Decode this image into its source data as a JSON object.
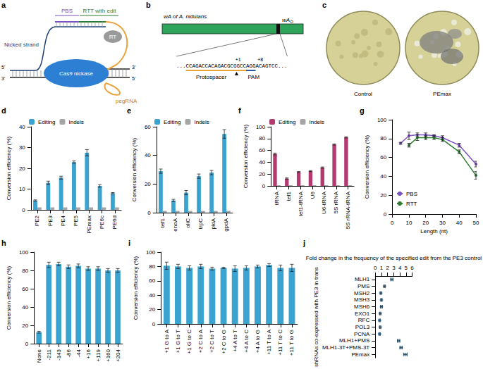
{
  "diagrams": {
    "a": {
      "panel": "a",
      "pbs": "PBS",
      "rtt": "RTT with edit",
      "nicked_strand": "Nicked strand",
      "rt": "RT",
      "end5": "5'",
      "end3": "3'",
      "cas9": "Cas9 nickase",
      "pegrna": "pegRNA"
    },
    "b": {
      "panel": "b",
      "gene": "wA of A. nidulans",
      "site": "wA",
      "site_sub": "O",
      "sequence": "...CCAGACCACAGACGCGGCCAGGACAGTCC...",
      "mark1": "+1",
      "mark8": "+8",
      "protospacer": "Protospacer",
      "pam": "PAM"
    },
    "c": {
      "panel": "c",
      "plates": [
        "Control",
        "PEmax"
      ]
    }
  },
  "chart_data": [
    {
      "panel": "d",
      "type": "bar",
      "categories": [
        "PE2",
        "PE3",
        "PE4",
        "PE5",
        "PEmax",
        "PE6c",
        "PE6d"
      ],
      "series": [
        {
          "name": "Editing",
          "color": "#3ba3d0",
          "values": [
            4.5,
            13,
            15.5,
            23,
            27.5,
            11.5,
            8
          ],
          "errors": [
            0.3,
            0.8,
            0.7,
            0.6,
            1.5,
            0.6,
            0.3
          ]
        },
        {
          "name": "Indels",
          "color": "#a6a6a6",
          "values": [
            1.2,
            1.2,
            1.2,
            1.2,
            1.2,
            1.2,
            1.2
          ]
        }
      ],
      "ylim": [
        0,
        40
      ],
      "yticks": [
        0,
        10,
        20,
        30,
        40
      ],
      "ylabel": "Conversion efficiency (%)",
      "legend": "top",
      "grid": false
    },
    {
      "panel": "e",
      "type": "bar",
      "categories": [
        "tef1",
        "enoA",
        "oliC",
        "trpC",
        "pkiA",
        "gpdA"
      ],
      "series": [
        {
          "name": "Editing",
          "color": "#3ba3d0",
          "values": [
            29,
            8.5,
            14,
            25.5,
            28,
            55
          ],
          "errors": [
            1.5,
            0.8,
            1.5,
            1.5,
            1.5,
            3
          ]
        },
        {
          "name": "Indels",
          "color": "#a6a6a6",
          "values": [
            1.2,
            1.2,
            1.2,
            1.2,
            1.2,
            1.2
          ]
        }
      ],
      "ylim": [
        0,
        60
      ],
      "yticks": [
        0,
        20,
        40,
        60
      ],
      "ylabel": "Conversion efficiency (%)",
      "legend": "top",
      "grid": false
    },
    {
      "panel": "f",
      "type": "bar",
      "categories": [
        "tRNA",
        "tef1",
        "tef1-tRNA",
        "U6",
        "U6-tRNA",
        "5S rRNA",
        "5S rRNA-tRNA"
      ],
      "series": [
        {
          "name": "Editing",
          "color": "#b23a6f",
          "values": [
            54,
            12.5,
            23.5,
            25,
            31,
            70,
            82
          ],
          "errors": [
            1.5,
            1,
            0.8,
            0.8,
            1,
            1,
            1
          ]
        },
        {
          "name": "Indels",
          "color": "#a6a6a6",
          "values": [
            1.2,
            1.2,
            1.2,
            1.2,
            1.2,
            1.2,
            1.2
          ]
        }
      ],
      "ylim": [
        0,
        100
      ],
      "yticks": [
        0,
        20,
        40,
        60,
        80,
        100
      ],
      "ylabel": "Conversion efficiency (%)",
      "legend": "top",
      "grid": false
    },
    {
      "panel": "g",
      "type": "line",
      "x": [
        5,
        10,
        15,
        20,
        25,
        30,
        40,
        50
      ],
      "marker": "circle",
      "series": [
        {
          "name": "PBS",
          "color": "#7b52c1",
          "values": [
            75,
            83,
            84,
            84,
            83,
            81,
            73,
            53
          ],
          "errors": [
            1,
            4,
            2,
            2,
            1,
            2,
            2,
            3
          ]
        },
        {
          "name": "RTT",
          "color": "#2f7d32",
          "values": [
            null,
            73,
            81,
            81,
            81,
            79,
            66,
            41
          ],
          "errors": [
            null,
            2,
            3,
            2,
            2,
            2,
            2,
            4
          ]
        }
      ],
      "xlim": [
        0,
        50
      ],
      "xticks": [
        0,
        10,
        20,
        30,
        40,
        50
      ],
      "xlabel": "Length (nt)",
      "ylim": [
        0,
        100
      ],
      "yticks": [
        0,
        20,
        40,
        60,
        80,
        100
      ],
      "ylabel": "Conversion efficiency (%)",
      "legend": "bottom-left",
      "grid": false
    },
    {
      "panel": "h",
      "type": "bar",
      "categories": [
        "None",
        "-211",
        "-143",
        "-86",
        "-44",
        "+16",
        "+119",
        "+160",
        "+204"
      ],
      "series": [
        {
          "name": "Editing",
          "color": "#3ba3d0",
          "values": [
            12.5,
            86,
            87,
            84,
            85,
            82,
            82,
            80,
            80
          ],
          "errors": [
            1,
            3,
            2,
            2,
            2,
            2,
            2,
            2,
            2
          ]
        }
      ],
      "ylim": [
        0,
        100
      ],
      "yticks": [
        0,
        20,
        40,
        60,
        80,
        100
      ],
      "ylabel": "Conversion efficiency (%)",
      "grid": false
    },
    {
      "panel": "i",
      "type": "bar",
      "categories": [
        "+1 G to A",
        "+1 G to T",
        "+1 G to C",
        "+2 C to A",
        "+2 C to T",
        "+2 C to G",
        "+4 A to T",
        "+4 A to C",
        "+4 A to G",
        "+11 T to A",
        "+11 T to C",
        "+11 T to G"
      ],
      "series": [
        {
          "name": "Editing",
          "color": "#3ba3d0",
          "values": [
            81,
            80,
            78,
            80,
            77,
            78,
            77,
            78,
            80,
            82,
            78,
            78
          ],
          "errors": [
            5,
            3,
            3,
            3,
            2,
            1,
            4,
            3,
            2,
            2,
            4,
            5
          ]
        }
      ],
      "ylim": [
        0,
        100
      ],
      "yticks": [
        0,
        20,
        40,
        60,
        80,
        100
      ],
      "ylabel": "Conversion efficiency (%)",
      "grid": false
    },
    {
      "panel": "j",
      "type": "scatter",
      "orientation": "horizontal",
      "marker": "circle",
      "categories": [
        "MLH1",
        "PMS",
        "MSH2",
        "MSH3",
        "MSH6",
        "EXO1",
        "RFC",
        "POL3",
        "PCNA",
        "MLH1+PMS",
        "MLH1-3T+PMS-3T",
        "PEmax"
      ],
      "series": [
        {
          "name": "Fold change",
          "color": "#3d8fc4",
          "values": [
            2.7,
            1.5,
            0.9,
            1.0,
            1.0,
            0.8,
            0.7,
            0.8,
            0.7,
            3.8,
            4.2,
            4.9
          ],
          "errors": [
            0.2,
            0.1,
            0.1,
            0.1,
            0.15,
            0.1,
            0.1,
            0.1,
            0.1,
            0.2,
            0.2,
            0.3
          ]
        }
      ],
      "xlim": [
        0,
        6
      ],
      "xticks": [
        0,
        1,
        2,
        3,
        4,
        5,
        6
      ],
      "xlabel": "Fold change in the frequency of the specified edit from the PE3 control",
      "ylabel": "shRNAs co-expressed with PE3 in trans",
      "grid": false
    }
  ]
}
